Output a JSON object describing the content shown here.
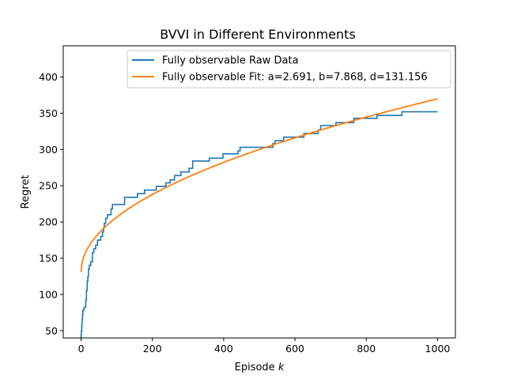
{
  "chart_data": {
    "type": "line",
    "title": "BVVI in Different Environments",
    "xlabel_main": "Episode",
    "xlabel_var": "k",
    "ylabel": "Regret",
    "xlim": [
      -50,
      1050
    ],
    "ylim": [
      40,
      443
    ],
    "xticks": [
      0,
      200,
      400,
      600,
      800,
      1000
    ],
    "yticks": [
      50,
      100,
      150,
      200,
      250,
      300,
      350,
      400
    ],
    "legend_position": "top-center",
    "grid": false,
    "series": [
      {
        "name": "Fully observable Raw Data",
        "color": "#1f77b4",
        "style": "step",
        "points": [
          [
            0,
            40
          ],
          [
            0,
            45
          ],
          [
            1,
            45
          ],
          [
            1,
            50
          ],
          [
            2,
            50
          ],
          [
            2,
            58
          ],
          [
            3,
            58
          ],
          [
            3,
            65
          ],
          [
            4,
            65
          ],
          [
            4,
            72
          ],
          [
            5,
            72
          ],
          [
            5,
            78
          ],
          [
            8,
            78
          ],
          [
            8,
            82
          ],
          [
            13,
            82
          ],
          [
            13,
            92
          ],
          [
            15,
            92
          ],
          [
            15,
            105
          ],
          [
            17,
            105
          ],
          [
            17,
            118
          ],
          [
            19,
            118
          ],
          [
            19,
            125
          ],
          [
            21,
            125
          ],
          [
            21,
            135
          ],
          [
            23,
            135
          ],
          [
            23,
            140
          ],
          [
            27,
            140
          ],
          [
            27,
            145
          ],
          [
            32,
            145
          ],
          [
            32,
            158
          ],
          [
            36,
            158
          ],
          [
            36,
            163
          ],
          [
            41,
            163
          ],
          [
            41,
            168
          ],
          [
            46,
            168
          ],
          [
            46,
            175
          ],
          [
            55,
            175
          ],
          [
            55,
            180
          ],
          [
            60,
            180
          ],
          [
            60,
            186
          ],
          [
            63,
            186
          ],
          [
            63,
            192
          ],
          [
            65,
            192
          ],
          [
            65,
            198
          ],
          [
            69,
            198
          ],
          [
            69,
            205
          ],
          [
            74,
            205
          ],
          [
            74,
            210
          ],
          [
            84,
            210
          ],
          [
            84,
            218
          ],
          [
            88,
            218
          ],
          [
            88,
            224
          ],
          [
            122,
            224
          ],
          [
            122,
            234
          ],
          [
            158,
            234
          ],
          [
            158,
            239
          ],
          [
            178,
            239
          ],
          [
            178,
            244
          ],
          [
            211,
            244
          ],
          [
            211,
            249
          ],
          [
            238,
            249
          ],
          [
            238,
            254
          ],
          [
            250,
            254
          ],
          [
            250,
            258
          ],
          [
            262,
            258
          ],
          [
            262,
            264
          ],
          [
            280,
            264
          ],
          [
            280,
            269
          ],
          [
            303,
            269
          ],
          [
            303,
            274
          ],
          [
            313,
            274
          ],
          [
            313,
            284
          ],
          [
            360,
            284
          ],
          [
            360,
            288
          ],
          [
            398,
            288
          ],
          [
            398,
            294
          ],
          [
            440,
            294
          ],
          [
            440,
            298
          ],
          [
            446,
            298
          ],
          [
            446,
            303
          ],
          [
            538,
            303
          ],
          [
            538,
            308
          ],
          [
            544,
            308
          ],
          [
            544,
            312
          ],
          [
            568,
            312
          ],
          [
            568,
            317
          ],
          [
            625,
            317
          ],
          [
            625,
            322
          ],
          [
            665,
            322
          ],
          [
            665,
            327
          ],
          [
            672,
            327
          ],
          [
            672,
            333
          ],
          [
            715,
            333
          ],
          [
            715,
            337
          ],
          [
            765,
            337
          ],
          [
            765,
            343
          ],
          [
            830,
            343
          ],
          [
            830,
            347
          ],
          [
            900,
            347
          ],
          [
            900,
            352
          ],
          [
            1000,
            352
          ]
        ]
      },
      {
        "name": "Fully observable Fit: a=2.691, b=7.868, d=131.156",
        "color": "#ff7f0e",
        "style": "line",
        "params": {
          "a": 2.691,
          "b": 7.868,
          "d": 131.156
        }
      }
    ]
  }
}
